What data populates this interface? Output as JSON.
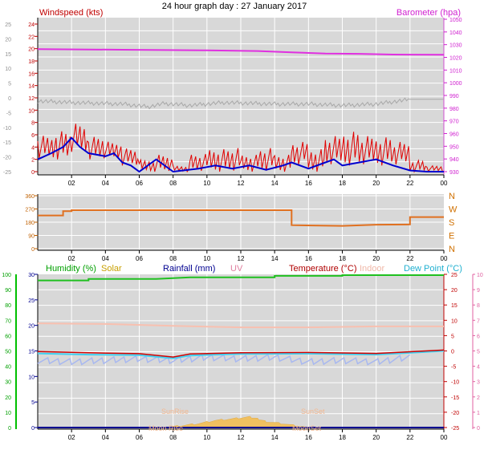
{
  "title": "24 hour graph day : 27 January 2017",
  "chart_data": [
    {
      "type": "line",
      "panel": "wind-pressure",
      "legend": {
        "windspeed": "Windspeed (kts)",
        "barometer": "Barometer (hpa)"
      },
      "left_ticks_grey": [
        "25",
        "20",
        "15",
        "10",
        "5",
        "0",
        "-5",
        "-10",
        "-15",
        "-20",
        "-25"
      ],
      "left_ticks_red": [
        "24",
        "22",
        "20",
        "18",
        "16",
        "14",
        "12",
        "10",
        "8",
        "6",
        "4",
        "2",
        "0"
      ],
      "right_ticks": [
        "1050",
        "1040",
        "1030",
        "1020",
        "1010",
        "1000",
        "990",
        "980",
        "970",
        "960",
        "950",
        "940",
        "930"
      ],
      "x_ticks": [
        "02",
        "04",
        "06",
        "08",
        "10",
        "12",
        "14",
        "16",
        "18",
        "20",
        "22",
        "00"
      ],
      "ylim_wind": [
        0,
        25
      ],
      "ylim_pressure": [
        930,
        1050
      ],
      "barometer": [
        [
          0,
          1026.5
        ],
        [
          5,
          1026
        ],
        [
          10,
          1025.5
        ],
        [
          13,
          1025
        ],
        [
          15,
          1024
        ],
        [
          17,
          1023
        ],
        [
          19,
          1022.8
        ],
        [
          21,
          1022.2
        ],
        [
          24,
          1022
        ]
      ],
      "windchill": [
        [
          0,
          -1
        ],
        [
          2,
          -1.5
        ],
        [
          5,
          -2
        ],
        [
          6.5,
          -3
        ],
        [
          7.5,
          -1.8
        ],
        [
          9,
          -2.5
        ],
        [
          11,
          -1.5
        ],
        [
          14,
          -2
        ],
        [
          16,
          -2
        ],
        [
          18,
          -2.5
        ],
        [
          20,
          -2
        ],
        [
          22,
          -0.5
        ],
        [
          24,
          -0.5
        ]
      ],
      "avg_wind": [
        [
          0,
          2
        ],
        [
          0.8,
          3
        ],
        [
          1.5,
          4
        ],
        [
          2,
          5.5
        ],
        [
          2.5,
          4
        ],
        [
          3,
          3
        ],
        [
          4,
          2.5
        ],
        [
          4.5,
          3
        ],
        [
          5,
          1.5
        ],
        [
          5.5,
          1
        ],
        [
          6,
          0
        ],
        [
          7,
          2
        ],
        [
          8,
          0
        ],
        [
          9.5,
          0.5
        ],
        [
          10.5,
          1
        ],
        [
          11.5,
          0.5
        ],
        [
          12.5,
          1
        ],
        [
          13.5,
          0.3
        ],
        [
          14.5,
          1
        ],
        [
          15,
          1.5
        ],
        [
          16,
          0.5
        ],
        [
          17,
          1.5
        ],
        [
          17.5,
          2
        ],
        [
          18,
          1
        ],
        [
          19,
          1.5
        ],
        [
          20,
          2
        ],
        [
          21,
          1
        ],
        [
          22,
          0.2
        ],
        [
          23,
          0
        ],
        [
          24,
          0
        ]
      ],
      "gust_range": [
        [
          0,
          2,
          6
        ],
        [
          1,
          2,
          7
        ],
        [
          2,
          3,
          8
        ],
        [
          3,
          2,
          6
        ],
        [
          4,
          2,
          5
        ],
        [
          5,
          1,
          4
        ],
        [
          6,
          0,
          2
        ],
        [
          7,
          0,
          3
        ],
        [
          8,
          0,
          1
        ],
        [
          9,
          0,
          3
        ],
        [
          10,
          0,
          4
        ],
        [
          11,
          0,
          4
        ],
        [
          12,
          0,
          3
        ],
        [
          13,
          0,
          4
        ],
        [
          14,
          0,
          3
        ],
        [
          15,
          1,
          5
        ],
        [
          16,
          0,
          4
        ],
        [
          17,
          1,
          6
        ],
        [
          18,
          1,
          7
        ],
        [
          19,
          1,
          6
        ],
        [
          20,
          1,
          6
        ],
        [
          21,
          1,
          5
        ],
        [
          22,
          0,
          2
        ],
        [
          23,
          0,
          1
        ]
      ]
    },
    {
      "type": "line",
      "panel": "wind-direction",
      "left_ticks": [
        "360",
        "270",
        "180",
        "90",
        "0"
      ],
      "right_ticks": [
        "N",
        "W",
        "S",
        "E",
        "N"
      ],
      "x_ticks": [
        "02",
        "04",
        "06",
        "08",
        "10",
        "12",
        "14",
        "16",
        "18",
        "20",
        "22",
        "00"
      ],
      "ylim": [
        0,
        360
      ],
      "direction": [
        [
          0,
          226
        ],
        [
          1.5,
          226
        ],
        [
          1.5,
          255
        ],
        [
          2,
          255
        ],
        [
          2,
          262
        ],
        [
          15,
          262
        ],
        [
          15,
          160
        ],
        [
          18,
          155
        ],
        [
          20,
          163
        ],
        [
          22,
          165
        ],
        [
          22,
          215
        ],
        [
          24,
          215
        ]
      ]
    },
    {
      "type": "line",
      "panel": "climate",
      "legend": {
        "humidity": "Humidity (%)",
        "solar": "Solar",
        "rainfall": "Rainfall (mm)",
        "uv": "UV",
        "temperature": "Temperature (°C)",
        "indoor": "Indoor",
        "dewpoint": "Dew Point (°C)"
      },
      "left_ticks_humidity": [
        "100",
        "90",
        "80",
        "70",
        "60",
        "50",
        "40",
        "30",
        "20",
        "10",
        "0"
      ],
      "left_ticks_rain": [
        "30",
        "25",
        "20",
        "15",
        "10",
        "5",
        "0"
      ],
      "right_ticks_temp": [
        "25",
        "20",
        "15",
        "10",
        "5",
        "0",
        "-5",
        "-10",
        "-15",
        "-20",
        "-25"
      ],
      "right_ticks_uv": [
        "10",
        "9",
        "8",
        "7",
        "6",
        "5",
        "4",
        "3",
        "2",
        "1",
        "0"
      ],
      "x_ticks": [
        "02",
        "04",
        "06",
        "08",
        "10",
        "12",
        "14",
        "16",
        "18",
        "20",
        "22",
        "00"
      ],
      "humidity": [
        [
          0,
          96
        ],
        [
          3,
          96
        ],
        [
          3,
          97
        ],
        [
          7,
          97
        ],
        [
          9,
          98
        ],
        [
          14,
          98
        ],
        [
          14,
          99
        ],
        [
          18,
          99
        ],
        [
          18,
          99.5
        ],
        [
          24,
          99.5
        ]
      ],
      "indoor_temp": [
        [
          0,
          9
        ],
        [
          4,
          8.8
        ],
        [
          8,
          8.2
        ],
        [
          12,
          7.7
        ],
        [
          16,
          7.7
        ],
        [
          20,
          8
        ],
        [
          24,
          8
        ]
      ],
      "temperature": [
        [
          0,
          -0.2
        ],
        [
          3,
          -0.6
        ],
        [
          6,
          -0.9
        ],
        [
          8,
          -2
        ],
        [
          9,
          -1
        ],
        [
          12,
          -0.6
        ],
        [
          16,
          -0.5
        ],
        [
          20,
          -0.8
        ],
        [
          24,
          0.3
        ]
      ],
      "dewpoint": [
        [
          0,
          -0.8
        ],
        [
          3,
          -1.2
        ],
        [
          6,
          -1.4
        ],
        [
          8,
          -2.4
        ],
        [
          9,
          -1.5
        ],
        [
          12,
          -1
        ],
        [
          16,
          -0.9
        ],
        [
          20,
          -1.2
        ],
        [
          24,
          0
        ]
      ],
      "dewpoint_alt": [
        [
          0,
          -3
        ],
        [
          2,
          -3.5
        ],
        [
          4,
          -3
        ],
        [
          6,
          -2.5
        ],
        [
          8,
          -3
        ],
        [
          10,
          -2
        ],
        [
          12,
          -2.5
        ],
        [
          14,
          -2
        ],
        [
          16,
          -3.5
        ],
        [
          18,
          -3
        ],
        [
          20,
          -3.5
        ],
        [
          22,
          -2
        ]
      ],
      "solar": [
        [
          7.5,
          0
        ],
        [
          8.5,
          0.5
        ],
        [
          9.5,
          1
        ],
        [
          10.5,
          1.8
        ],
        [
          11.5,
          2.2
        ],
        [
          12.5,
          2.7
        ],
        [
          13,
          2.2
        ],
        [
          13.5,
          1.5
        ],
        [
          14.5,
          1
        ],
        [
          15.5,
          0.3
        ],
        [
          16,
          0
        ]
      ],
      "annotations": {
        "sunrise": "SunRise",
        "sunset": "SunSet",
        "moonrise": "Moon Rise",
        "moonset": "MoonSet"
      }
    }
  ]
}
